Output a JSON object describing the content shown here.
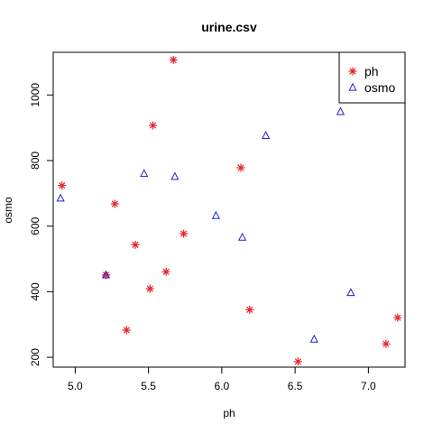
{
  "chart_data": {
    "type": "scatter",
    "title": "urine.csv",
    "xlabel": "ph",
    "ylabel": "osmo",
    "xlim": [
      4.85,
      7.25
    ],
    "ylim": [
      170,
      1130
    ],
    "xticks": [
      5.0,
      5.5,
      6.0,
      6.5,
      7.0
    ],
    "xtick_labels": [
      "5.0",
      "5.5",
      "6.0",
      "6.5",
      "7.0"
    ],
    "yticks": [
      200,
      400,
      600,
      800,
      1000
    ],
    "ytick_labels": [
      "200",
      "400",
      "600",
      "800",
      "1000"
    ],
    "grid": false,
    "legend_position": "top-right",
    "series": [
      {
        "name": "ph",
        "marker": "asterisk",
        "color": "#e8202a",
        "points": [
          [
            5.67,
            1107
          ],
          [
            5.53,
            907
          ],
          [
            4.91,
            724
          ],
          [
            6.13,
            778
          ],
          [
            5.27,
            668
          ],
          [
            5.74,
            577
          ],
          [
            5.41,
            543
          ],
          [
            5.62,
            461
          ],
          [
            5.21,
            451
          ],
          [
            5.51,
            409
          ],
          [
            5.35,
            283
          ],
          [
            6.19,
            345
          ],
          [
            7.2,
            321
          ],
          [
            7.12,
            241
          ],
          [
            6.52,
            187
          ]
        ]
      },
      {
        "name": "osmo",
        "marker": "triangle",
        "color": "#2020d0",
        "points": [
          [
            4.9,
            685
          ],
          [
            5.47,
            760
          ],
          [
            5.68,
            751
          ],
          [
            5.96,
            632
          ],
          [
            6.14,
            566
          ],
          [
            6.3,
            876
          ],
          [
            6.81,
            949
          ],
          [
            5.21,
            451
          ],
          [
            6.88,
            397
          ],
          [
            6.63,
            255
          ]
        ]
      }
    ]
  }
}
